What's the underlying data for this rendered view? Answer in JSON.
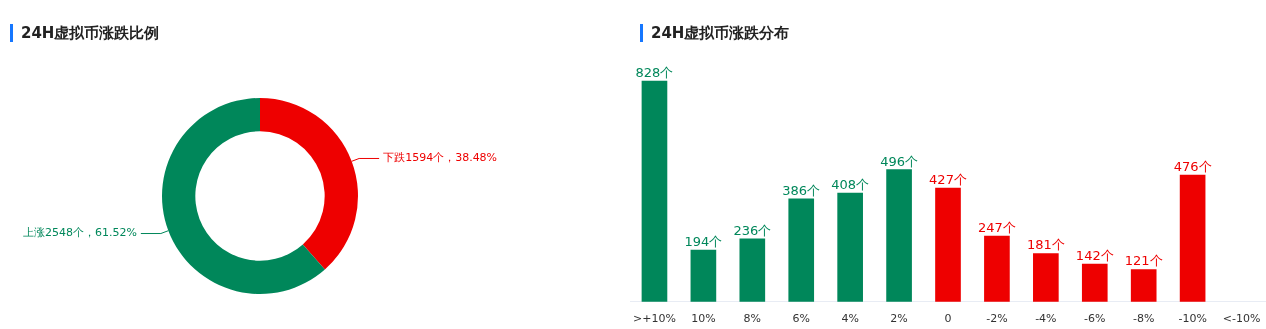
{
  "chart_data": [
    {
      "type": "donut",
      "title": "24H虚拟币涨跌比例",
      "categories": [
        "下跌",
        "上涨"
      ],
      "values": [
        1594,
        2548
      ],
      "colors": [
        "#ee0000",
        "#00875a"
      ],
      "value_labels": [
        "1594个，38.48%",
        "2548个，61.52%"
      ]
    },
    {
      "type": "bar",
      "title": "24H虚拟币涨跌分布",
      "categories": [
        ">+10%",
        "10%",
        "8%",
        "6%",
        "4%",
        "2%",
        "0",
        "-2%",
        "-4%",
        "-6%",
        "-8%",
        "-10%",
        "<-10%"
      ],
      "values": [
        828,
        194,
        236,
        386,
        408,
        496,
        427,
        247,
        181,
        142,
        121,
        476,
        null
      ],
      "colors": [
        "#00875a",
        "#00875a",
        "#00875a",
        "#00875a",
        "#00875a",
        "#00875a",
        "#ee0000",
        "#ee0000",
        "#ee0000",
        "#ee0000",
        "#ee0000",
        "#ee0000",
        "#ee0000"
      ],
      "value_labels": [
        "828个",
        "194个",
        "236个",
        "386个",
        "408个",
        "496个",
        "427个",
        "247个",
        "181个",
        "142个",
        "121个",
        "476个",
        null
      ]
    }
  ]
}
